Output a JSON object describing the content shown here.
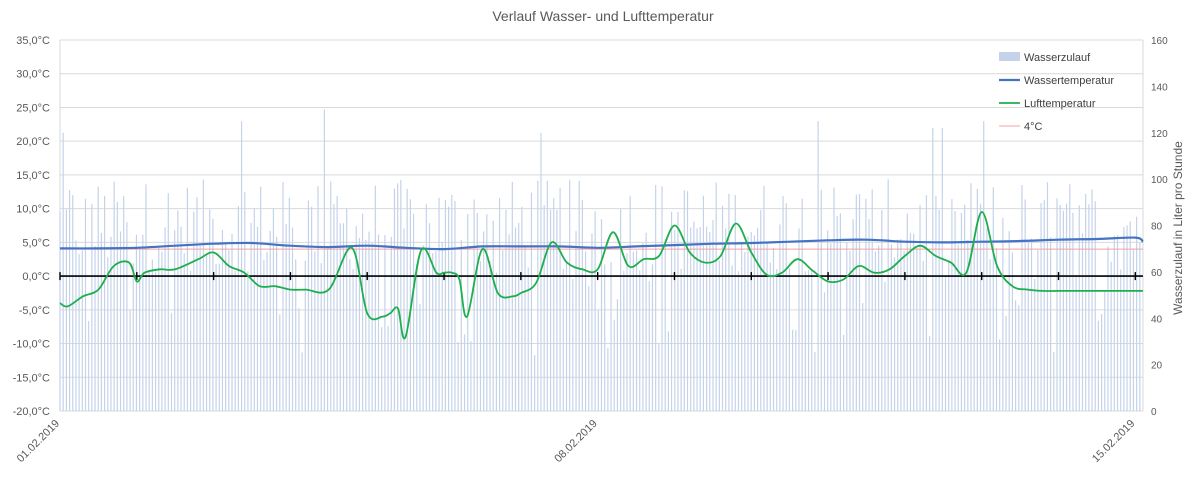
{
  "chart_data": {
    "type": "line",
    "title": "Verlauf Wasser- und Lufttemperatur",
    "y_left": {
      "range": [
        -20,
        35
      ],
      "ticks": [
        "35,0°C",
        "30,0°C",
        "25,0°C",
        "20,0°C",
        "15,0°C",
        "10,0°C",
        "5,0°C",
        "0,0°C",
        "-5,0°C",
        "-10,0°C",
        "-15,0°C",
        "-20,0°C"
      ],
      "tick_values": [
        35,
        30,
        25,
        20,
        15,
        10,
        5,
        0,
        -5,
        -10,
        -15,
        -20
      ]
    },
    "y_right": {
      "label": "Wasserzulauf in Liter pro Stunde",
      "range": [
        0,
        160
      ],
      "ticks": [
        "160",
        "140",
        "120",
        "100",
        "80",
        "60",
        "40",
        "20",
        "0"
      ],
      "tick_values": [
        160,
        140,
        120,
        100,
        80,
        60,
        40,
        20,
        0
      ]
    },
    "x_axis": {
      "start_day": 1,
      "end_day": 15.1,
      "labels": [
        {
          "day": 1,
          "text": "01.02.2019"
        },
        {
          "day": 8,
          "text": "08.02.2019"
        },
        {
          "day": 15,
          "text": "15.02.2019"
        }
      ],
      "day_ticks": [
        2,
        3,
        4,
        5,
        6,
        7,
        8,
        9,
        10,
        11,
        12,
        13,
        14,
        15
      ]
    },
    "grid": true,
    "legend_position": "top-right",
    "legend": [
      "Wasserzulauf",
      "Wassertemperatur",
      "Lufttemperatur",
      "4°C"
    ],
    "colors": {
      "wasserzulauf": "#c5d3ea",
      "wassertemperatur": "#4472c4",
      "lufttemperatur": "#1fae4d",
      "reference": "#f4a0a0",
      "zero_axis": "#000000",
      "grid": "#d9d9d9"
    },
    "reference_line": {
      "name": "4°C",
      "value": 4
    },
    "series": [
      {
        "name": "Wassertemperatur",
        "axis": "left",
        "x": [
          1.0,
          1.5,
          2.0,
          2.5,
          3.0,
          3.5,
          4.0,
          4.5,
          5.0,
          5.5,
          6.0,
          6.5,
          7.0,
          7.5,
          8.0,
          8.5,
          9.0,
          9.5,
          10.0,
          10.5,
          11.0,
          11.5,
          12.0,
          12.5,
          13.0,
          13.5,
          14.0,
          14.5,
          15.0,
          15.1
        ],
        "y": [
          4.1,
          4.1,
          4.2,
          4.5,
          4.8,
          4.9,
          4.5,
          4.3,
          4.5,
          4.2,
          4.0,
          4.4,
          4.4,
          4.4,
          4.2,
          4.4,
          4.6,
          4.8,
          4.9,
          5.1,
          5.3,
          5.4,
          5.1,
          5.0,
          5.1,
          5.2,
          5.4,
          5.5,
          5.7,
          5.1
        ]
      },
      {
        "name": "Lufttemperatur",
        "axis": "left",
        "x": [
          1.0,
          1.1,
          1.3,
          1.5,
          1.7,
          1.9,
          2.0,
          2.1,
          2.3,
          2.5,
          2.8,
          3.0,
          3.2,
          3.4,
          3.6,
          3.8,
          4.0,
          4.2,
          4.5,
          4.8,
          5.0,
          5.2,
          5.3,
          5.4,
          5.5,
          5.7,
          5.9,
          6.0,
          6.1,
          6.2,
          6.3,
          6.5,
          6.7,
          6.9,
          7.0,
          7.2,
          7.4,
          7.6,
          7.8,
          8.0,
          8.2,
          8.4,
          8.6,
          8.8,
          9.0,
          9.2,
          9.4,
          9.6,
          9.8,
          10.0,
          10.2,
          10.4,
          10.6,
          10.8,
          11.0,
          11.2,
          11.4,
          11.6,
          11.8,
          12.0,
          12.2,
          12.4,
          12.6,
          12.8,
          13.0,
          13.2,
          13.4,
          13.6,
          13.8,
          14.0,
          14.2,
          14.4,
          14.6,
          14.8,
          15.0,
          15.1
        ],
        "y": [
          -4.0,
          -4.5,
          -3.0,
          -2.0,
          1.5,
          2.0,
          -0.8,
          0.5,
          1.0,
          1.0,
          2.5,
          3.5,
          1.5,
          0.5,
          -1.5,
          -1.5,
          -2.0,
          -2.0,
          -2.0,
          4.2,
          -5.5,
          -6.0,
          -5.5,
          -4.8,
          -9.0,
          3.8,
          0.5,
          0.5,
          0.5,
          -0.5,
          -6.0,
          4.0,
          -2.5,
          -3.0,
          -2.5,
          -1.0,
          5.0,
          2.0,
          1.0,
          1.0,
          6.5,
          1.5,
          2.5,
          3.0,
          7.5,
          3.5,
          2.0,
          3.0,
          7.8,
          3.5,
          0.2,
          0.5,
          2.5,
          0.8,
          -0.8,
          -0.5,
          1.5,
          0.5,
          1.0,
          3.0,
          4.5,
          3.0,
          2.0,
          0.5,
          9.5,
          1.5,
          -1.5,
          -2.0,
          -2.2,
          -2.2,
          -2.2,
          -2.2,
          -2.2,
          -2.2,
          -2.2,
          -2.2
        ]
      },
      {
        "name": "Wasserzulauf",
        "axis": "right",
        "type": "bar",
        "x_start": 1.0,
        "x_end": 15.1,
        "count": 340,
        "typical_range": [
          60,
          100
        ],
        "peaks": [
          135,
          130,
          128,
          125,
          120,
          122
        ]
      }
    ]
  }
}
